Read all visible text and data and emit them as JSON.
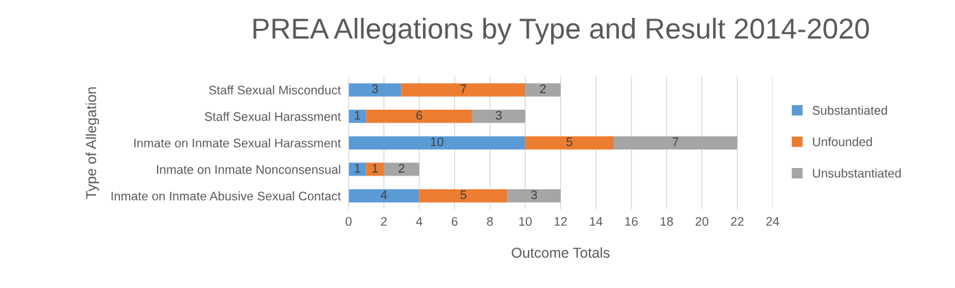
{
  "chart_data": {
    "type": "bar",
    "orientation": "horizontal",
    "stacked": true,
    "title": "PREA Allegations by Type and Result 2014-2020",
    "xlabel": "Outcome Totals",
    "ylabel": "Type of Allegation",
    "categories": [
      "Staff Sexual Misconduct",
      "Staff Sexual Harassment",
      "Inmate on Inmate Sexual Harassment",
      "Inmate on Inmate Nonconsensual",
      "Inmate on Inmate Abusive Sexual Contact"
    ],
    "series": [
      {
        "name": "Substantiated",
        "color": "#5b9bd5",
        "values": [
          3,
          1,
          10,
          1,
          4
        ]
      },
      {
        "name": "Unfounded",
        "color": "#ed7d31",
        "values": [
          7,
          6,
          5,
          1,
          5
        ]
      },
      {
        "name": "Unsubstantiated",
        "color": "#a5a5a5",
        "values": [
          2,
          3,
          7,
          2,
          3
        ]
      }
    ],
    "xlim": [
      0,
      24
    ],
    "xticks": [
      0,
      2,
      4,
      6,
      8,
      10,
      12,
      14,
      16,
      18,
      20,
      22,
      24
    ],
    "grid": "x",
    "legend": "right",
    "data_labels": true
  }
}
